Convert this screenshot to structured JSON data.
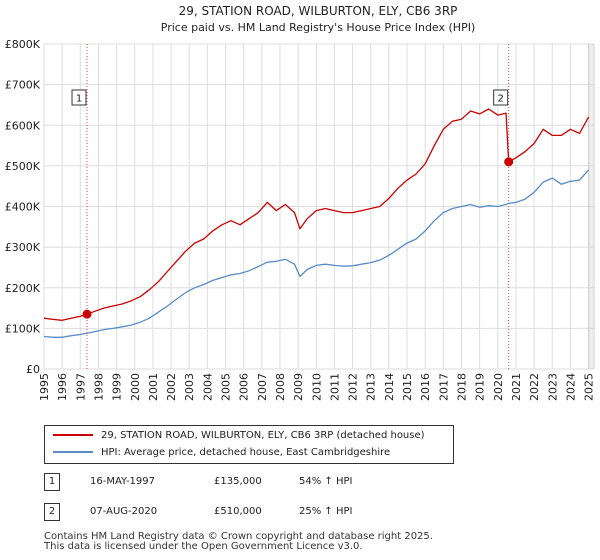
{
  "chart_data": {
    "type": "line",
    "title": "29, STATION ROAD, WILBURTON, ELY, CB6 3RP",
    "subtitle": "Price paid vs. HM Land Registry's House Price Index (HPI)",
    "xlim": [
      1995.0,
      2025.3
    ],
    "ylim": [
      0,
      800000
    ],
    "y_ticks": [
      {
        "value": 0,
        "label": "£0"
      },
      {
        "value": 100000,
        "label": "£100K"
      },
      {
        "value": 200000,
        "label": "£200K"
      },
      {
        "value": 300000,
        "label": "£300K"
      },
      {
        "value": 400000,
        "label": "£400K"
      },
      {
        "value": 500000,
        "label": "£500K"
      },
      {
        "value": 600000,
        "label": "£600K"
      },
      {
        "value": 700000,
        "label": "£700K"
      },
      {
        "value": 800000,
        "label": "£800K"
      }
    ],
    "x_ticks": [
      "1995",
      "1996",
      "1997",
      "1998",
      "1999",
      "2000",
      "2001",
      "2002",
      "2003",
      "2004",
      "2005",
      "2006",
      "2007",
      "2008",
      "2009",
      "2010",
      "2011",
      "2012",
      "2013",
      "2014",
      "2015",
      "2016",
      "2017",
      "2018",
      "2019",
      "2020",
      "2021",
      "2022",
      "2023",
      "2024",
      "2025"
    ],
    "grid": true,
    "series": [
      {
        "name": "29, STATION ROAD, WILBURTON, ELY, CB6 3RP (detached house)",
        "color": "#cc0000",
        "x": [
          1995.0,
          1995.5,
          1996.0,
          1996.5,
          1997.0,
          1997.37,
          1997.8,
          1998.3,
          1998.8,
          1999.3,
          1999.8,
          2000.3,
          2000.8,
          2001.3,
          2001.8,
          2002.3,
          2002.8,
          2003.3,
          2003.8,
          2004.3,
          2004.8,
          2005.3,
          2005.8,
          2006.3,
          2006.8,
          2007.3,
          2007.8,
          2008.3,
          2008.8,
          2009.1,
          2009.5,
          2010.0,
          2010.5,
          2011.0,
          2011.5,
          2012.0,
          2012.5,
          2013.0,
          2013.5,
          2014.0,
          2014.5,
          2015.0,
          2015.5,
          2016.0,
          2016.5,
          2017.0,
          2017.5,
          2018.0,
          2018.5,
          2019.0,
          2019.5,
          2020.0,
          2020.45,
          2020.6,
          2021.0,
          2021.5,
          2022.0,
          2022.5,
          2023.0,
          2023.5,
          2024.0,
          2024.5,
          2025.0
        ],
        "values": [
          125000,
          122000,
          120000,
          125000,
          130000,
          135000,
          142000,
          150000,
          155000,
          160000,
          168000,
          178000,
          195000,
          215000,
          240000,
          265000,
          290000,
          310000,
          320000,
          340000,
          355000,
          365000,
          355000,
          370000,
          385000,
          410000,
          390000,
          405000,
          385000,
          345000,
          370000,
          390000,
          395000,
          390000,
          385000,
          385000,
          390000,
          395000,
          400000,
          420000,
          445000,
          465000,
          480000,
          505000,
          550000,
          590000,
          610000,
          615000,
          635000,
          628000,
          640000,
          625000,
          630000,
          510000,
          520000,
          535000,
          555000,
          590000,
          575000,
          575000,
          590000,
          580000,
          620000
        ]
      },
      {
        "name": "HPI: Average price, detached house, East Cambridgeshire",
        "color": "#5b8cc9",
        "x": [
          1995.0,
          1995.5,
          1996.0,
          1996.5,
          1997.0,
          1997.37,
          1997.8,
          1998.3,
          1998.8,
          1999.3,
          1999.8,
          2000.3,
          2000.8,
          2001.3,
          2001.8,
          2002.3,
          2002.8,
          2003.3,
          2003.8,
          2004.3,
          2004.8,
          2005.3,
          2005.8,
          2006.3,
          2006.8,
          2007.3,
          2007.8,
          2008.3,
          2008.8,
          2009.1,
          2009.5,
          2010.0,
          2010.5,
          2011.0,
          2011.5,
          2012.0,
          2012.5,
          2013.0,
          2013.5,
          2014.0,
          2014.5,
          2015.0,
          2015.5,
          2016.0,
          2016.5,
          2017.0,
          2017.5,
          2018.0,
          2018.5,
          2019.0,
          2019.5,
          2020.0,
          2020.45,
          2020.6,
          2021.0,
          2021.5,
          2022.0,
          2022.5,
          2023.0,
          2023.5,
          2024.0,
          2024.5,
          2025.0
        ],
        "values": [
          80000,
          78000,
          78000,
          82000,
          85000,
          88000,
          92000,
          97000,
          100000,
          104000,
          108000,
          115000,
          125000,
          140000,
          155000,
          172000,
          188000,
          200000,
          208000,
          218000,
          225000,
          232000,
          235000,
          242000,
          252000,
          263000,
          265000,
          270000,
          258000,
          228000,
          245000,
          255000,
          258000,
          255000,
          253000,
          254000,
          258000,
          262000,
          268000,
          280000,
          295000,
          310000,
          320000,
          340000,
          365000,
          385000,
          395000,
          400000,
          405000,
          398000,
          402000,
          400000,
          405000,
          408000,
          410000,
          418000,
          435000,
          460000,
          470000,
          455000,
          462000,
          465000,
          490000
        ]
      }
    ],
    "sales": [
      {
        "marker": "1",
        "year": 1997.37,
        "price": 135000
      },
      {
        "marker": "2",
        "year": 2020.6,
        "price": 510000
      }
    ]
  },
  "legend": [
    {
      "label": "29, STATION ROAD, WILBURTON, ELY, CB6 3RP (detached house)",
      "color": "#cc0000"
    },
    {
      "label": "HPI: Average price, detached house, East Cambridgeshire",
      "color": "#5b8cc9"
    }
  ],
  "sales_table": [
    {
      "marker": "1",
      "date": "16-MAY-1997",
      "price": "£135,000",
      "hpi": "54% ↑ HPI"
    },
    {
      "marker": "2",
      "date": "07-AUG-2020",
      "price": "£510,000",
      "hpi": "25% ↑ HPI"
    }
  ],
  "footer": {
    "line1": "Contains HM Land Registry data © Crown copyright and database right 2025.",
    "line2": "This data is licensed under the Open Government Licence v3.0."
  }
}
